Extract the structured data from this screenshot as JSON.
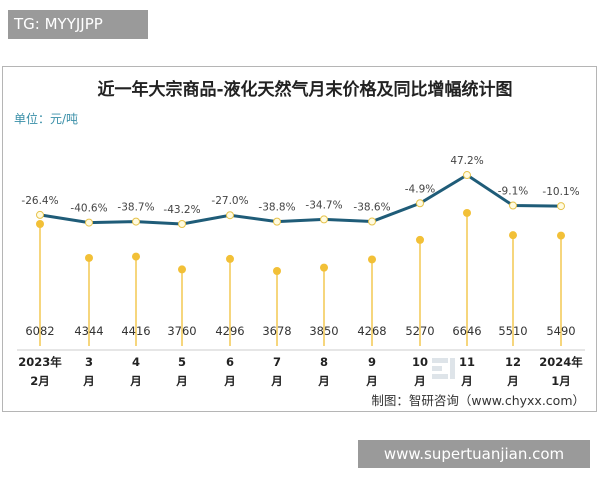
{
  "header_tag": "TG: MYYJJPP",
  "footer_tag": "www.supertuanjian.com",
  "chart_data": {
    "type": "line+lollipop",
    "title": "近一年大宗商品-液化天然气月末价格及同比增幅统计图",
    "unit": "单位：元/吨",
    "source": "制图：智研咨询（www.chyxx.com）",
    "watermark": "智研咨询 www.chyxx.com",
    "categories": [
      [
        "2023年",
        "2月"
      ],
      [
        "3",
        "月"
      ],
      [
        "4",
        "月"
      ],
      [
        "5",
        "月"
      ],
      [
        "6",
        "月"
      ],
      [
        "7",
        "月"
      ],
      [
        "8",
        "月"
      ],
      [
        "9",
        "月"
      ],
      [
        "10",
        "月"
      ],
      [
        "11",
        "月"
      ],
      [
        "12",
        "月"
      ],
      [
        "2024年",
        "1月"
      ]
    ],
    "series": [
      {
        "type": "lollipop",
        "values": [
          6082,
          4344,
          4416,
          3760,
          4296,
          3678,
          3850,
          4268,
          5270,
          6646,
          5510,
          5490
        ],
        "color": "#f2c037"
      },
      {
        "type": "line",
        "values": [
          -26.4,
          -40.6,
          -38.7,
          -43.2,
          -27.0,
          -38.8,
          -34.7,
          -38.6,
          -4.9,
          47.2,
          -9.1,
          -10.1
        ],
        "labels": [
          "-26.4%",
          "-40.6%",
          "-38.7%",
          "-43.2%",
          "-27.0%",
          "-38.8%",
          "-34.7%",
          "-38.6%",
          "-4.9%",
          "47.2%",
          "-9.1%",
          "-10.1%"
        ],
        "color": "#1f5c78"
      }
    ],
    "title_color": "#222222",
    "unit_color": "#3a8fa8"
  }
}
